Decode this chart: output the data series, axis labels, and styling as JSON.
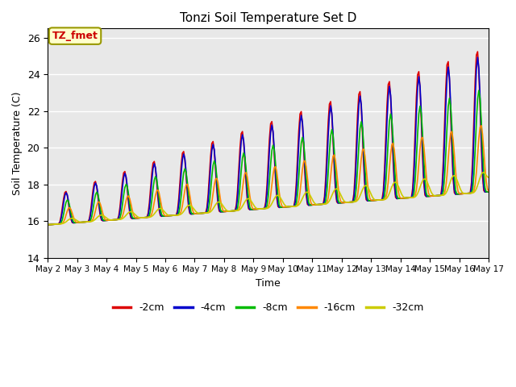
{
  "title": "Tonzi Soil Temperature Set D",
  "xlabel": "Time",
  "ylabel": "Soil Temperature (C)",
  "ylim": [
    14,
    26.5
  ],
  "xlim": [
    0,
    360
  ],
  "annotation": "TZ_fmet",
  "series": [
    "-2cm",
    "-4cm",
    "-8cm",
    "-16cm",
    "-32cm"
  ],
  "colors": [
    "#dd0000",
    "#0000cc",
    "#00bb00",
    "#ff8800",
    "#cccc00"
  ],
  "linewidths": [
    1.2,
    1.2,
    1.2,
    1.2,
    1.2
  ],
  "xtick_labels": [
    "May 2",
    "May 3",
    "May 4",
    "May 5",
    "May 6",
    "May 7",
    "May 8",
    "May 9",
    "May 10",
    "May 11",
    "May 12",
    "May 13",
    "May 14",
    "May 15",
    "May 16",
    "May 17"
  ],
  "xtick_positions": [
    0,
    24,
    48,
    72,
    96,
    120,
    144,
    168,
    192,
    216,
    240,
    264,
    288,
    312,
    336,
    360
  ],
  "ytick_positions": [
    14,
    16,
    18,
    20,
    22,
    24,
    26
  ],
  "background_color": "#e8e8e8",
  "fig_background": "#ffffff",
  "grid_color": "#ffffff",
  "hours_per_day": 24,
  "num_days": 15
}
